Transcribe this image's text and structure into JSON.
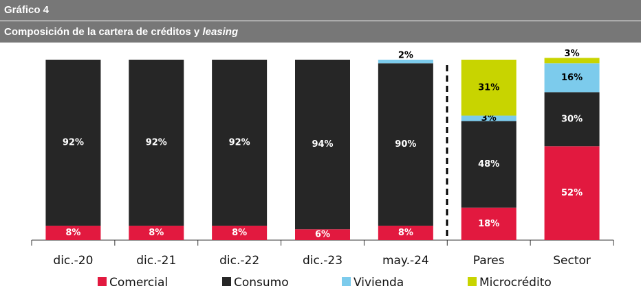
{
  "chart_data": {
    "type": "stacked_bar",
    "title": "Gráfico 4",
    "subtitle": "Composición de la cartera de créditos y",
    "subtitle_italic": "leasing",
    "categories": [
      "dic.-20",
      "dic.-21",
      "dic.-22",
      "dic.-23",
      "may.-24",
      "Pares",
      "Sector"
    ],
    "ylim": [
      0,
      100
    ],
    "legend": "bottom",
    "series": [
      {
        "name": "Comercial",
        "color": "#e2193f",
        "label_color": "#ffffff",
        "values": [
          8,
          8,
          8,
          6,
          8,
          18,
          52
        ],
        "value_labels": [
          "8%",
          "8%",
          "8%",
          "6%",
          "8%",
          "18%",
          "52%"
        ]
      },
      {
        "name": "Consumo",
        "color": "#262626",
        "label_color": "#ffffff",
        "values": [
          92,
          92,
          92,
          94,
          90,
          48,
          30
        ],
        "value_labels": [
          "92%",
          "92%",
          "92%",
          "94%",
          "90%",
          "48%",
          "30%"
        ]
      },
      {
        "name": "Vivienda",
        "color": "#7ccbec",
        "label_color": "#000000",
        "values": [
          null,
          null,
          null,
          null,
          2,
          3,
          16
        ],
        "value_labels": [
          null,
          null,
          null,
          null,
          "2%",
          "3%",
          "16%"
        ]
      },
      {
        "name": "Microcrédito",
        "color": "#c8d400",
        "label_color": "#000000",
        "values": [
          null,
          null,
          null,
          null,
          null,
          31,
          3
        ],
        "value_labels": [
          null,
          null,
          null,
          null,
          null,
          "31%",
          "3%"
        ]
      }
    ]
  }
}
